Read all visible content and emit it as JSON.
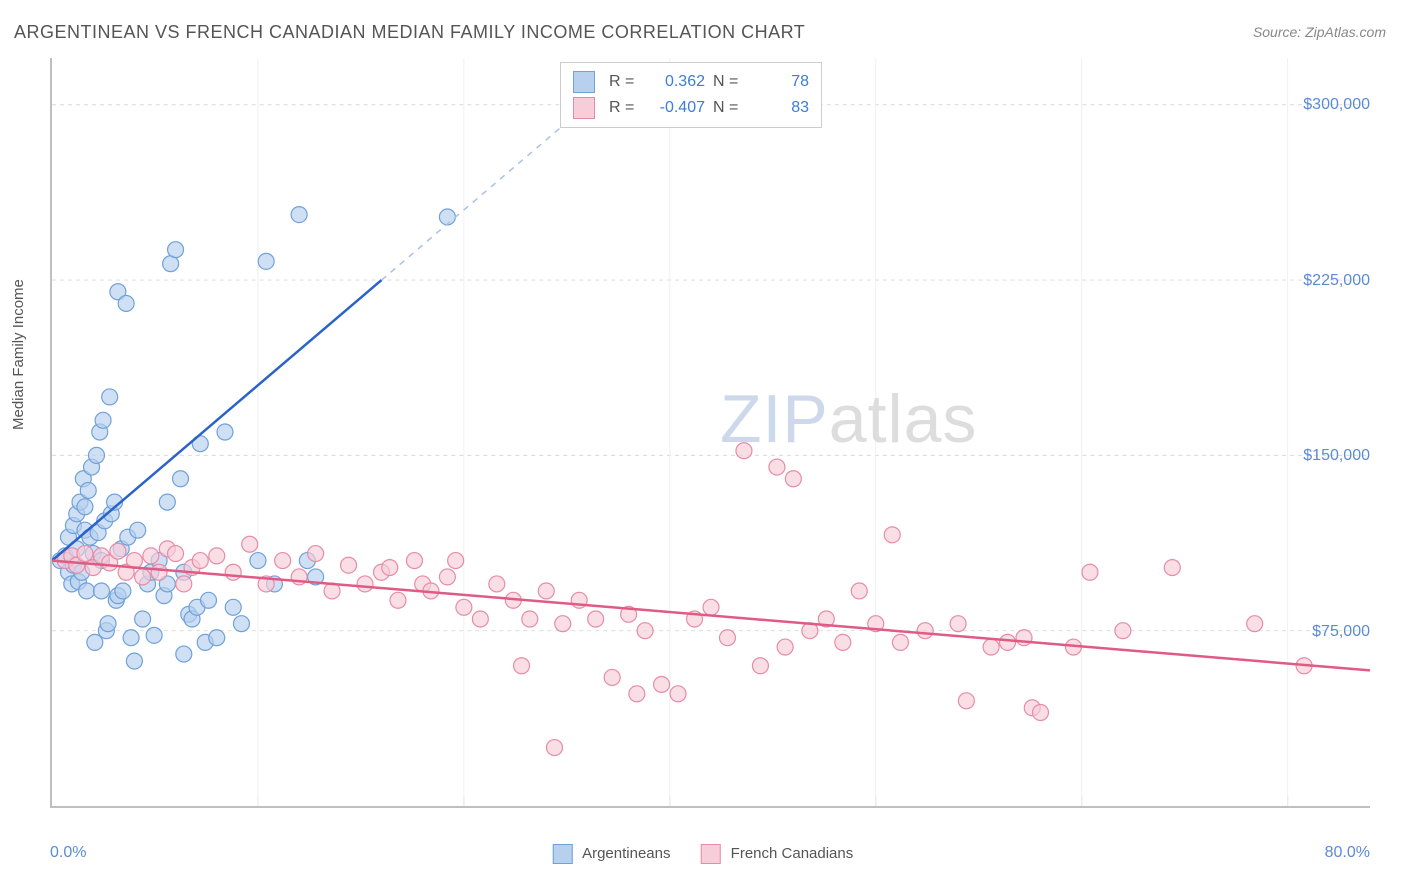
{
  "title": "ARGENTINEAN VS FRENCH CANADIAN MEDIAN FAMILY INCOME CORRELATION CHART",
  "source": "Source: ZipAtlas.com",
  "ylabel": "Median Family Income",
  "watermark_zip": "ZIP",
  "watermark_rest": "atlas",
  "xaxis": {
    "min_label": "0.0%",
    "max_label": "80.0%",
    "min": 0,
    "max": 80,
    "ticks_pct": [
      12.5,
      25,
      37.5,
      50,
      62.5,
      75
    ]
  },
  "yaxis": {
    "min": 0,
    "max": 320000,
    "ticks": [
      {
        "value": 75000,
        "label": "$75,000"
      },
      {
        "value": 150000,
        "label": "$150,000"
      },
      {
        "value": 225000,
        "label": "$225,000"
      },
      {
        "value": 300000,
        "label": "$300,000"
      }
    ]
  },
  "series": [
    {
      "name": "Argentineans",
      "fill": "#b7d0ee",
      "stroke": "#6fa1da",
      "line_color": "#2a62c9",
      "dash_color": "#a9c1e6",
      "r_value": "0.362",
      "n_value": "78",
      "trend": {
        "x1": 0,
        "y1": 105000,
        "x2_solid": 20,
        "y2_solid": 225000,
        "x2_dash": 35,
        "y2_dash": 315000
      },
      "points": [
        [
          0.5,
          105000
        ],
        [
          0.8,
          107000
        ],
        [
          1.0,
          100000
        ],
        [
          1.0,
          115000
        ],
        [
          1.2,
          95000
        ],
        [
          1.3,
          120000
        ],
        [
          1.3,
          103000
        ],
        [
          1.5,
          125000
        ],
        [
          1.5,
          110000
        ],
        [
          1.6,
          96000
        ],
        [
          1.7,
          130000
        ],
        [
          1.8,
          100000
        ],
        [
          1.9,
          140000
        ],
        [
          2.0,
          118000
        ],
        [
          2.0,
          128000
        ],
        [
          2.1,
          92000
        ],
        [
          2.2,
          135000
        ],
        [
          2.3,
          115000
        ],
        [
          2.4,
          145000
        ],
        [
          2.5,
          108000
        ],
        [
          2.6,
          70000
        ],
        [
          2.7,
          150000
        ],
        [
          2.8,
          117000
        ],
        [
          2.9,
          160000
        ],
        [
          3.0,
          105000
        ],
        [
          3.0,
          92000
        ],
        [
          3.1,
          165000
        ],
        [
          3.2,
          122000
        ],
        [
          3.3,
          75000
        ],
        [
          3.4,
          78000
        ],
        [
          3.5,
          175000
        ],
        [
          3.6,
          125000
        ],
        [
          3.8,
          130000
        ],
        [
          3.9,
          88000
        ],
        [
          4.0,
          90000
        ],
        [
          4.0,
          220000
        ],
        [
          4.2,
          110000
        ],
        [
          4.3,
          92000
        ],
        [
          4.5,
          215000
        ],
        [
          4.6,
          115000
        ],
        [
          4.8,
          72000
        ],
        [
          5.0,
          62000
        ],
        [
          5.2,
          118000
        ],
        [
          5.5,
          80000
        ],
        [
          5.8,
          95000
        ],
        [
          6.0,
          100000
        ],
        [
          6.2,
          73000
        ],
        [
          6.5,
          105000
        ],
        [
          6.8,
          90000
        ],
        [
          7.0,
          95000
        ],
        [
          7.0,
          130000
        ],
        [
          7.2,
          232000
        ],
        [
          7.5,
          238000
        ],
        [
          7.8,
          140000
        ],
        [
          8.0,
          100000
        ],
        [
          8.0,
          65000
        ],
        [
          8.3,
          82000
        ],
        [
          8.5,
          80000
        ],
        [
          8.8,
          85000
        ],
        [
          9.0,
          155000
        ],
        [
          9.3,
          70000
        ],
        [
          9.5,
          88000
        ],
        [
          10.0,
          72000
        ],
        [
          10.5,
          160000
        ],
        [
          11.0,
          85000
        ],
        [
          11.5,
          78000
        ],
        [
          12.5,
          105000
        ],
        [
          13.0,
          233000
        ],
        [
          13.5,
          95000
        ],
        [
          15.0,
          253000
        ],
        [
          15.5,
          105000
        ],
        [
          16.0,
          98000
        ],
        [
          24.0,
          252000
        ]
      ]
    },
    {
      "name": "French Canadians",
      "fill": "#f6cdd8",
      "stroke": "#e78ca6",
      "line_color": "#e05a84",
      "r_value": "-0.407",
      "n_value": "83",
      "trend": {
        "x1": 0,
        "y1": 105000,
        "x2_solid": 80,
        "y2_solid": 58000
      },
      "points": [
        [
          0.8,
          105000
        ],
        [
          1.2,
          107000
        ],
        [
          1.5,
          103000
        ],
        [
          2.0,
          108000
        ],
        [
          2.5,
          102000
        ],
        [
          3.0,
          107000
        ],
        [
          3.5,
          104000
        ],
        [
          4.0,
          109000
        ],
        [
          4.5,
          100000
        ],
        [
          5.0,
          105000
        ],
        [
          5.5,
          98000
        ],
        [
          6.0,
          107000
        ],
        [
          6.5,
          100000
        ],
        [
          7.0,
          110000
        ],
        [
          7.5,
          108000
        ],
        [
          8.0,
          95000
        ],
        [
          8.5,
          102000
        ],
        [
          9.0,
          105000
        ],
        [
          10.0,
          107000
        ],
        [
          11.0,
          100000
        ],
        [
          12.0,
          112000
        ],
        [
          13.0,
          95000
        ],
        [
          14.0,
          105000
        ],
        [
          15.0,
          98000
        ],
        [
          16.0,
          108000
        ],
        [
          17.0,
          92000
        ],
        [
          18.0,
          103000
        ],
        [
          19.0,
          95000
        ],
        [
          20.0,
          100000
        ],
        [
          20.5,
          102000
        ],
        [
          21.0,
          88000
        ],
        [
          22.0,
          105000
        ],
        [
          22.5,
          95000
        ],
        [
          23.0,
          92000
        ],
        [
          24.0,
          98000
        ],
        [
          24.5,
          105000
        ],
        [
          25.0,
          85000
        ],
        [
          26.0,
          80000
        ],
        [
          27.0,
          95000
        ],
        [
          28.0,
          88000
        ],
        [
          28.5,
          60000
        ],
        [
          29.0,
          80000
        ],
        [
          30.0,
          92000
        ],
        [
          30.5,
          25000
        ],
        [
          31.0,
          78000
        ],
        [
          32.0,
          88000
        ],
        [
          33.0,
          80000
        ],
        [
          34.0,
          55000
        ],
        [
          35.0,
          82000
        ],
        [
          35.5,
          48000
        ],
        [
          36.0,
          75000
        ],
        [
          37.0,
          52000
        ],
        [
          38.0,
          48000
        ],
        [
          39.0,
          80000
        ],
        [
          40.0,
          85000
        ],
        [
          41.0,
          72000
        ],
        [
          42.0,
          152000
        ],
        [
          43.0,
          60000
        ],
        [
          44.0,
          145000
        ],
        [
          44.5,
          68000
        ],
        [
          45.0,
          140000
        ],
        [
          46.0,
          75000
        ],
        [
          47.0,
          80000
        ],
        [
          48.0,
          70000
        ],
        [
          49.0,
          92000
        ],
        [
          50.0,
          78000
        ],
        [
          51.0,
          116000
        ],
        [
          51.5,
          70000
        ],
        [
          53.0,
          75000
        ],
        [
          55.0,
          78000
        ],
        [
          55.5,
          45000
        ],
        [
          57.0,
          68000
        ],
        [
          58.0,
          70000
        ],
        [
          59.0,
          72000
        ],
        [
          59.5,
          42000
        ],
        [
          60.0,
          40000
        ],
        [
          62.0,
          68000
        ],
        [
          63.0,
          100000
        ],
        [
          65.0,
          75000
        ],
        [
          68.0,
          102000
        ],
        [
          73.0,
          78000
        ],
        [
          76.0,
          60000
        ]
      ]
    }
  ],
  "marker_radius": 8,
  "marker_opacity": 0.65,
  "background_color": "#ffffff",
  "grid_color": "#d9d9d9",
  "axis_color": "#bfbfbf",
  "tick_label_color": "#5a8bd6",
  "text_color": "#555555"
}
